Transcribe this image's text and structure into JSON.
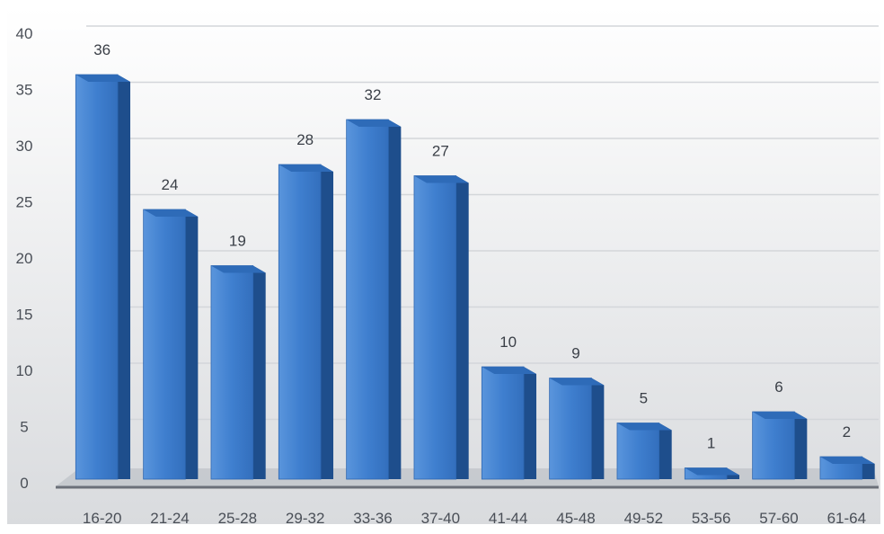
{
  "chart_data": {
    "type": "bar",
    "title": "",
    "xlabel": "",
    "ylabel": "",
    "categories": [
      "16-20",
      "21-24",
      "25-28",
      "29-32",
      "33-36",
      "37-40",
      "41-44",
      "45-48",
      "49-52",
      "53-56",
      "57-60",
      "61-64"
    ],
    "series": [
      {
        "values": [
          36,
          24,
          19,
          28,
          32,
          27,
          10,
          9,
          5,
          1,
          6,
          2
        ]
      }
    ],
    "ylim": [
      0,
      40
    ],
    "yticks": [
      0,
      5,
      10,
      15,
      20,
      25,
      30,
      35,
      40
    ],
    "grid": true,
    "legend": "none",
    "bar_style": "3d",
    "colors": {
      "bar_front": "#3f7fcf",
      "bar_side": "#1e4e8c",
      "bar_top": "#2e6bb8",
      "grid": "#d3d6da",
      "floor": "#9ea3aa",
      "background_top": "#ffffff",
      "background_bottom": "#d9dbde"
    }
  }
}
